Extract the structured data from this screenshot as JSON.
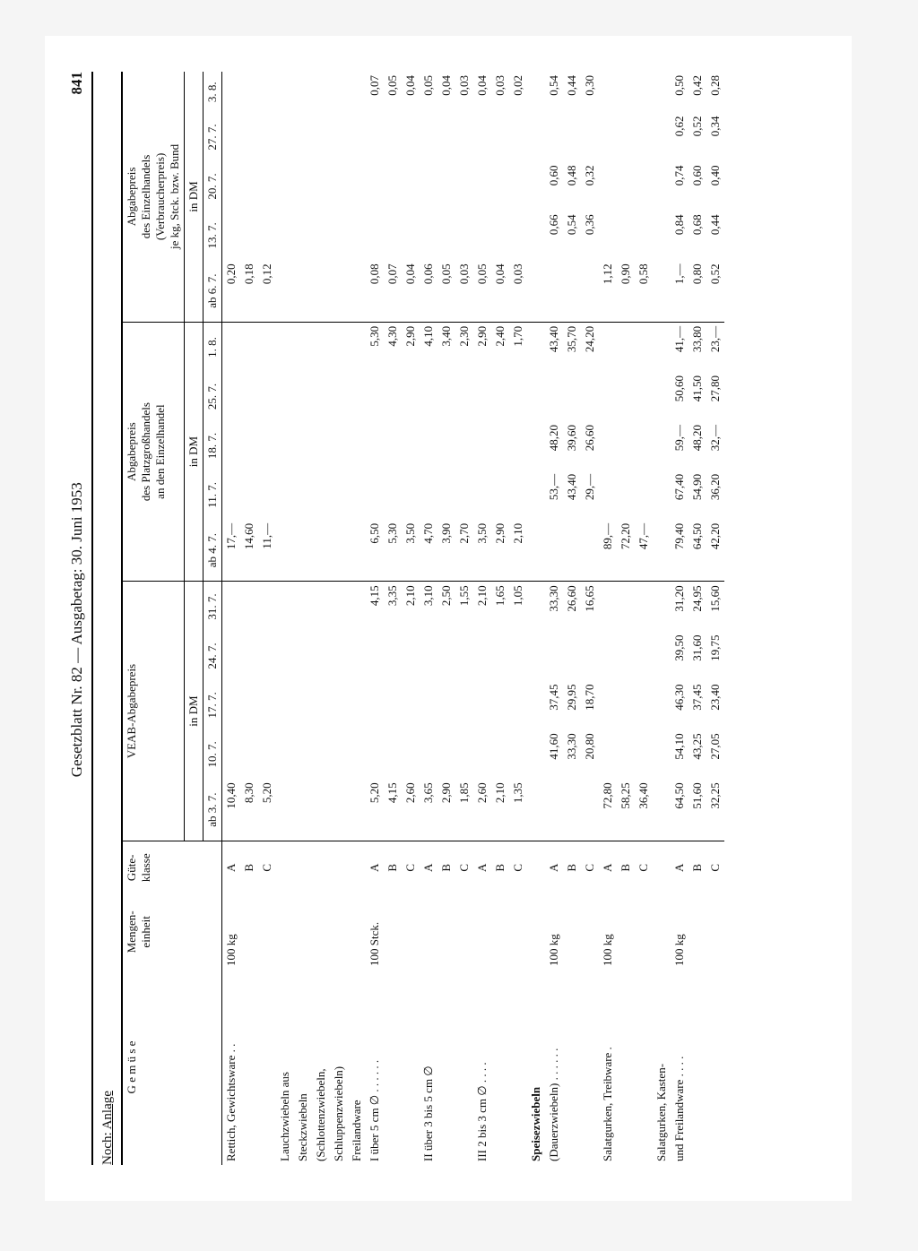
{
  "running_head_center": "Gesetzblatt Nr. 82 — Ausgabetag: 30. Juni 1953",
  "page_number": "841",
  "anlage_label": "Noch: Anlage",
  "col_headers": {
    "gemuese": "G e m ü s e",
    "menge": "Mengen-\neinheit",
    "guete": "Güte-\nklasse",
    "veab_title": "VEAB-Abgabepreis",
    "platz_title": "Abgabepreis\ndes Platzgroßhandels\nan den Einzelhandel",
    "einzel_title": "Abgabepreis\ndes Einzelhandels\n(Verbraucherpreis)\nje kg, Stck. bzw. Bund",
    "in_dm": "in DM",
    "veab_dates": [
      "ab 3. 7.",
      "10. 7.",
      "17. 7.",
      "24. 7.",
      "31. 7."
    ],
    "platz_dates": [
      "ab 4. 7.",
      "11. 7.",
      "18. 7.",
      "25. 7.",
      "1. 8."
    ],
    "einzel_dates": [
      "ab 6. 7.",
      "13. 7.",
      "20. 7.",
      "27. 7.",
      "3. 8."
    ]
  },
  "rows": [
    {
      "name": "Rettich, Gewichtsware . .",
      "unit": "100 kg",
      "grade": "A",
      "veab": [
        "10,40",
        "",
        "",
        "",
        ""
      ],
      "platz": [
        "17,—",
        "",
        "",
        "",
        ""
      ],
      "einzel": [
        "0,20",
        "",
        "",
        "",
        ""
      ]
    },
    {
      "name": "",
      "unit": "",
      "grade": "B",
      "veab": [
        "8,30",
        "",
        "",
        "",
        ""
      ],
      "platz": [
        "14,60",
        "",
        "",
        "",
        ""
      ],
      "einzel": [
        "0,18",
        "",
        "",
        "",
        ""
      ]
    },
    {
      "name": "",
      "unit": "",
      "grade": "C",
      "veab": [
        "5,20",
        "",
        "",
        "",
        ""
      ],
      "platz": [
        "11,—",
        "",
        "",
        "",
        ""
      ],
      "einzel": [
        "0,12",
        "",
        "",
        "",
        ""
      ]
    },
    {
      "name": "Lauchzwiebeln aus",
      "unit": "",
      "grade": "",
      "veab": [
        "",
        "",
        "",
        "",
        ""
      ],
      "platz": [
        "",
        "",
        "",
        "",
        ""
      ],
      "einzel": [
        "",
        "",
        "",
        "",
        ""
      ]
    },
    {
      "name": "Steckzwiebeln",
      "unit": "",
      "grade": "",
      "veab": [
        "",
        "",
        "",
        "",
        ""
      ],
      "platz": [
        "",
        "",
        "",
        "",
        ""
      ],
      "einzel": [
        "",
        "",
        "",
        "",
        ""
      ]
    },
    {
      "name": "(Schlottenzwiebeln,",
      "unit": "",
      "grade": "",
      "veab": [
        "",
        "",
        "",
        "",
        ""
      ],
      "platz": [
        "",
        "",
        "",
        "",
        ""
      ],
      "einzel": [
        "",
        "",
        "",
        "",
        ""
      ]
    },
    {
      "name": "Schluppenzwiebeln)",
      "unit": "",
      "grade": "",
      "veab": [
        "",
        "",
        "",
        "",
        ""
      ],
      "platz": [
        "",
        "",
        "",
        "",
        ""
      ],
      "einzel": [
        "",
        "",
        "",
        "",
        ""
      ]
    },
    {
      "name": "Freilandware",
      "unit": "",
      "grade": "",
      "veab": [
        "",
        "",
        "",
        "",
        ""
      ],
      "platz": [
        "",
        "",
        "",
        "",
        ""
      ],
      "einzel": [
        "",
        "",
        "",
        "",
        ""
      ]
    },
    {
      "name": "I über 5 cm ∅  . . . . . .",
      "unit": "100 Stck.",
      "grade": "A",
      "veab": [
        "5,20",
        "",
        "",
        "",
        "4,15"
      ],
      "platz": [
        "6,50",
        "",
        "",
        "",
        "5,30"
      ],
      "einzel": [
        "0,08",
        "",
        "",
        "",
        "0,07"
      ]
    },
    {
      "name": "",
      "unit": "",
      "grade": "B",
      "veab": [
        "4,15",
        "",
        "",
        "",
        "3,35"
      ],
      "platz": [
        "5,30",
        "",
        "",
        "",
        "4,30"
      ],
      "einzel": [
        "0,07",
        "",
        "",
        "",
        "0,05"
      ]
    },
    {
      "name": "",
      "unit": "",
      "grade": "C",
      "veab": [
        "2,60",
        "",
        "",
        "",
        "2,10"
      ],
      "platz": [
        "3,50",
        "",
        "",
        "",
        "2,90"
      ],
      "einzel": [
        "0,04",
        "",
        "",
        "",
        "0,04"
      ]
    },
    {
      "name": "II  über 3 bis 5 cm ∅",
      "unit": "",
      "grade": "A",
      "veab": [
        "3,65",
        "",
        "",
        "",
        "3,10"
      ],
      "platz": [
        "4,70",
        "",
        "",
        "",
        "4,10"
      ],
      "einzel": [
        "0,06",
        "",
        "",
        "",
        "0,05"
      ]
    },
    {
      "name": "",
      "unit": "",
      "grade": "B",
      "veab": [
        "2,90",
        "",
        "",
        "",
        "2,50"
      ],
      "platz": [
        "3,90",
        "",
        "",
        "",
        "3,40"
      ],
      "einzel": [
        "0,05",
        "",
        "",
        "",
        "0,04"
      ]
    },
    {
      "name": "",
      "unit": "",
      "grade": "C",
      "veab": [
        "1,85",
        "",
        "",
        "",
        "1,55"
      ],
      "platz": [
        "2,70",
        "",
        "",
        "",
        "2,30"
      ],
      "einzel": [
        "0,03",
        "",
        "",
        "",
        "0,03"
      ]
    },
    {
      "name": "III 2 bis 3 cm ∅  . . . .",
      "unit": "",
      "grade": "A",
      "veab": [
        "2,60",
        "",
        "",
        "",
        "2,10"
      ],
      "platz": [
        "3,50",
        "",
        "",
        "",
        "2,90"
      ],
      "einzel": [
        "0,05",
        "",
        "",
        "",
        "0,04"
      ]
    },
    {
      "name": "",
      "unit": "",
      "grade": "B",
      "veab": [
        "2,10",
        "",
        "",
        "",
        "1,65"
      ],
      "platz": [
        "2,90",
        "",
        "",
        "",
        "2,40"
      ],
      "einzel": [
        "0,04",
        "",
        "",
        "",
        "0,03"
      ]
    },
    {
      "name": "",
      "unit": "",
      "grade": "C",
      "veab": [
        "1,35",
        "",
        "",
        "",
        "1,05"
      ],
      "platz": [
        "2,10",
        "",
        "",
        "",
        "1,70"
      ],
      "einzel": [
        "0,03",
        "",
        "",
        "",
        "0,02"
      ]
    },
    {
      "name": "Speisezwiebeln",
      "bold": true,
      "unit": "",
      "grade": "",
      "veab": [
        "",
        "",
        "",
        "",
        ""
      ],
      "platz": [
        "",
        "",
        "",
        "",
        ""
      ],
      "einzel": [
        "",
        "",
        "",
        "",
        ""
      ]
    },
    {
      "name": "(Dauerzwiebeln)  . . . . . .",
      "unit": "100 kg",
      "grade": "A",
      "veab": [
        "",
        "41,60",
        "37,45",
        "",
        "33,30"
      ],
      "platz": [
        "",
        "53,—",
        "48,20",
        "",
        "43,40"
      ],
      "einzel": [
        "",
        "0,66",
        "0,60",
        "",
        "0,54"
      ]
    },
    {
      "name": "",
      "unit": "",
      "grade": "B",
      "veab": [
        "",
        "33,30",
        "29,95",
        "",
        "26,60"
      ],
      "platz": [
        "",
        "43,40",
        "39,60",
        "",
        "35,70"
      ],
      "einzel": [
        "",
        "0,54",
        "0,48",
        "",
        "0,44"
      ]
    },
    {
      "name": "",
      "unit": "",
      "grade": "C",
      "veab": [
        "",
        "20,80",
        "18,70",
        "",
        "16,65"
      ],
      "platz": [
        "",
        "29,—",
        "26,60",
        "",
        "24,20"
      ],
      "einzel": [
        "",
        "0,36",
        "0,32",
        "",
        "0,30"
      ]
    },
    {
      "name": "Salatgurken, Treibware .",
      "unit": "100 kg",
      "grade": "A",
      "veab": [
        "72,80",
        "",
        "",
        "",
        ""
      ],
      "platz": [
        "89,—",
        "",
        "",
        "",
        ""
      ],
      "einzel": [
        "1,12",
        "",
        "",
        "",
        ""
      ]
    },
    {
      "name": "",
      "unit": "",
      "grade": "B",
      "veab": [
        "58,25",
        "",
        "",
        "",
        ""
      ],
      "platz": [
        "72,20",
        "",
        "",
        "",
        ""
      ],
      "einzel": [
        "0,90",
        "",
        "",
        "",
        ""
      ]
    },
    {
      "name": "",
      "unit": "",
      "grade": "C",
      "veab": [
        "36,40",
        "",
        "",
        "",
        ""
      ],
      "platz": [
        "47,—",
        "",
        "",
        "",
        ""
      ],
      "einzel": [
        "0,58",
        "",
        "",
        "",
        ""
      ]
    },
    {
      "name": "Salatgurken, Kasten-",
      "unit": "",
      "grade": "",
      "veab": [
        "",
        "",
        "",
        "",
        ""
      ],
      "platz": [
        "",
        "",
        "",
        "",
        ""
      ],
      "einzel": [
        "",
        "",
        "",
        "",
        ""
      ]
    },
    {
      "name": "und Freilandware  . . . .",
      "unit": "100 kg",
      "grade": "A",
      "veab": [
        "64,50",
        "54,10",
        "46,30",
        "39,50",
        "31,20"
      ],
      "platz": [
        "79,40",
        "67,40",
        "59,—",
        "50,60",
        "41,—"
      ],
      "einzel": [
        "1,—",
        "0,84",
        "0,74",
        "0,62",
        "0,50"
      ]
    },
    {
      "name": "",
      "unit": "",
      "grade": "B",
      "veab": [
        "51,60",
        "43,25",
        "37,45",
        "31,60",
        "24,95"
      ],
      "platz": [
        "64,50",
        "54,90",
        "48,20",
        "41,50",
        "33,80"
      ],
      "einzel": [
        "0,80",
        "0,68",
        "0,60",
        "0,52",
        "0,42"
      ]
    },
    {
      "name": "",
      "unit": "",
      "grade": "C",
      "veab": [
        "32,25",
        "27,05",
        "23,40",
        "19,75",
        "15,60"
      ],
      "platz": [
        "42,20",
        "36,20",
        "32,—",
        "27,80",
        "23,—"
      ],
      "einzel": [
        "0,52",
        "0,44",
        "0,40",
        "0,34",
        "0,28"
      ]
    }
  ]
}
